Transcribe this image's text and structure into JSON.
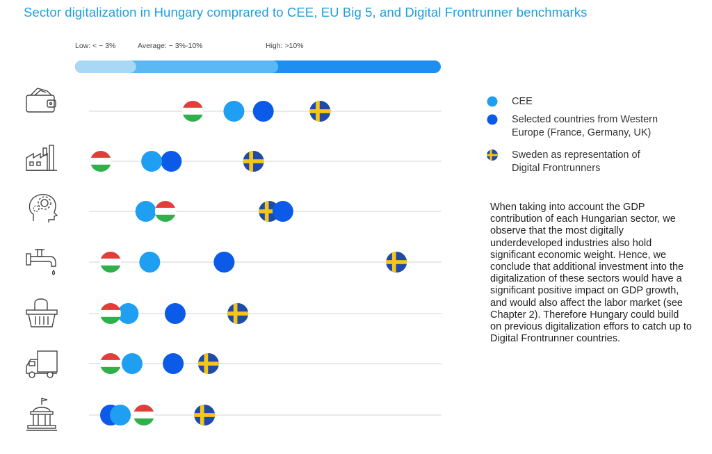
{
  "title": "Sector digitalization in Hungary comprared to CEE, EU Big 5, and Digital Frontrunner benchmarks",
  "scale": {
    "low_label": "Low: < ~ 3%",
    "average_label": "Average: ~ 3%-10%",
    "high_label": "High: >10%"
  },
  "legend": {
    "cee": "CEE",
    "western_line1": "Selected countries from Western",
    "western_line2": "Europe (France, Germany, UK)",
    "sweden_line1": "Sweden as representation of",
    "sweden_line2": "Digital Frontrunners"
  },
  "body_text": "When taking into account the GDP contribution of each Hungarian sector, we observe that the most digitally underdeveloped industries also hold significant economic weight. Hence, we conclude that additional investment into the digitalization of these sectors would have a significant positive impact on GDP growth, and would also affect the labor market (see Chapter 2). Therefore Hungary could build on previous digitalization effors to catch up to Digital Frontrunner countries.",
  "colors": {
    "title": "#1a9fe0",
    "cee": "#1e9ff2",
    "western": "#0b5ae8",
    "sweden_blue": "#1f4aa8",
    "sweden_yellow": "#f5c518",
    "hungary_red": "#e33d3a",
    "hungary_green": "#2fb04a",
    "bar_low": "#a8d8f4",
    "bar_avg": "#5cb8f2",
    "bar_high": "#1e8ff0",
    "track": "#e2e2e2"
  },
  "chart_data": {
    "type": "scatter",
    "x_axis": "sector digitalization",
    "xlim": [
      0,
      18
    ],
    "scale_bands": [
      {
        "name": "Low",
        "range": [
          0,
          3
        ]
      },
      {
        "name": "Average",
        "range": [
          3,
          10
        ]
      },
      {
        "name": "High",
        "range": [
          10,
          18
        ]
      }
    ],
    "categories": [
      "wallet-icon",
      "factory-icon",
      "brain-gear-icon",
      "water-tap-icon",
      "shopping-basket-icon",
      "delivery-truck-icon",
      "government-building-icon"
    ],
    "series": [
      {
        "name": "Hungary",
        "values": [
          5.3,
          0.6,
          3.9,
          1.1,
          1.1,
          1.1,
          2.8
        ],
        "marker": "hungary-flag"
      },
      {
        "name": "CEE",
        "values": [
          7.4,
          3.2,
          2.9,
          3.1,
          2.0,
          2.2,
          1.6
        ],
        "marker": "cee"
      },
      {
        "name": "Selected countries from Western Europe (France, Germany, UK)",
        "values": [
          8.9,
          4.2,
          9.9,
          6.9,
          4.4,
          4.3,
          1.1
        ],
        "marker": "western"
      },
      {
        "name": "Sweden as representation of Digital Frontrunners",
        "values": [
          11.8,
          8.4,
          9.2,
          15.7,
          7.6,
          6.1,
          5.9
        ],
        "marker": "sweden-flag"
      }
    ]
  }
}
